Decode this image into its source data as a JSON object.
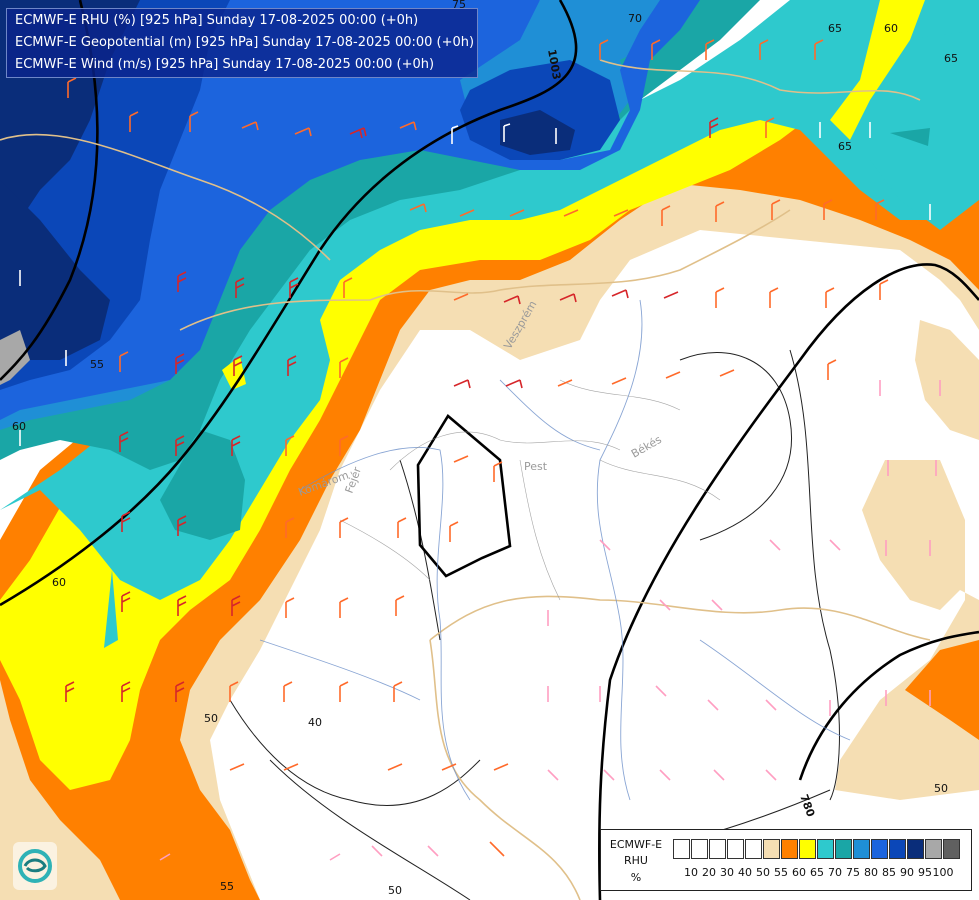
{
  "header": {
    "line1": "ECMWF-E RHU (%) [925 hPa] Sunday 17-08-2025 00:00 (+0h)",
    "line2": "ECMWF-E Geopotential (m) [925 hPa] Sunday 17-08-2025 00:00 (+0h)",
    "line3": "ECMWF-E Wind (m/s) [925 hPa] Sunday 17-08-2025 00:00 (+0h)"
  },
  "legend": {
    "model": "ECMWF-E",
    "param": "RHU",
    "unit": "%",
    "ticks": [
      "10",
      "20",
      "30",
      "40",
      "50",
      "55",
      "60",
      "65",
      "70",
      "75",
      "80",
      "85",
      "90",
      "95",
      "100"
    ],
    "colors": [
      "#ffffff",
      "#ffffff",
      "#ffffff",
      "#ffffff",
      "#ffffff",
      "#f5deb3",
      "#ff8000",
      "#ffff00",
      "#2ec9cd",
      "#1aa6a6",
      "#1f8fd6",
      "#1c64dd",
      "#0b47b8",
      "#0a2d7a",
      "#a8a8a8",
      "#606060"
    ]
  },
  "contours": {
    "rhu_labels": [
      "75",
      "70",
      "65",
      "60",
      "65",
      "60",
      "65",
      "60",
      "55",
      "50",
      "40",
      "50",
      "55",
      "50"
    ],
    "geopotential_labels": [
      "1003",
      "780"
    ]
  },
  "places": [
    "Pest",
    "Békés",
    "Fejér",
    "Komárom",
    "Veszprém"
  ],
  "colors": {
    "white": "#ffffff",
    "wheat": "#f5deb3",
    "orange": "#ff8000",
    "yellow": "#ffff00",
    "cyan": "#2ec9cd",
    "teal": "#1aa6a6",
    "blue": "#1c64dd",
    "navy": "#0a2d7a",
    "gray": "#a8a8a8"
  }
}
